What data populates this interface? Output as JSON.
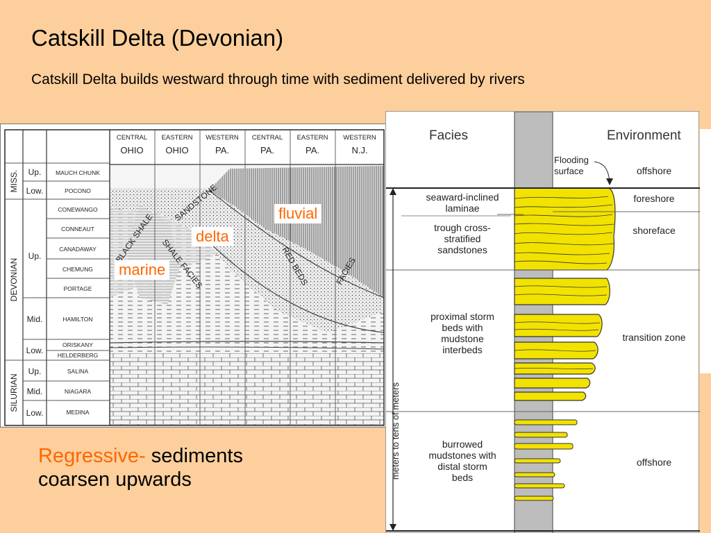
{
  "slide": {
    "title": "Catskill Delta (Devonian)",
    "subtitle": "Catskill Delta builds westward through time with sediment delivered by rivers",
    "bottom_prefix": "Regressive-",
    "bottom_line1_rest": " sediments",
    "bottom_line2": "coarsen upwards"
  },
  "colors": {
    "background": "#fccf9c",
    "accent": "#ff6600",
    "sandstone": "#f2e200"
  },
  "cross_section": {
    "columns": [
      [
        "CENTRAL",
        "OHIO"
      ],
      [
        "EASTERN",
        "OHIO"
      ],
      [
        "WESTERN",
        "PA."
      ],
      [
        "CENTRAL",
        "PA."
      ],
      [
        "EASTERN",
        "PA."
      ],
      [
        "WESTERN",
        "N.J."
      ]
    ],
    "systems": [
      "MISS.",
      "DEVONIAN",
      "SILURIAN"
    ],
    "series": [
      "Up.",
      "Low.",
      "Up.",
      "Mid.",
      "Low.",
      "Up.",
      "Mid.",
      "Low."
    ],
    "formations": [
      "MAUCH CHUNK",
      "POCONO",
      "CONEWANGO",
      "CONNEAUT",
      "CANADAWAY",
      "CHEMUNG",
      "PORTAGE",
      "HAMILTON",
      "ORISKANY",
      "HELDERBERG",
      "SALINA",
      "NIAGARA",
      "MEDINA"
    ],
    "facies_text": [
      "BLACK SHALE",
      "SHALE FACIES",
      "SANDSTONE",
      "RED BEDS",
      "FACIES"
    ],
    "labels": {
      "fluvial": "fluvial",
      "delta": "delta",
      "marine": "marine"
    }
  },
  "column": {
    "header_facies": "Facies",
    "header_environment": "Environment",
    "flooding": [
      "Flooding",
      "surface"
    ],
    "axis_label": "meters to tens of meters",
    "facies": [
      [
        "seaward-inclined",
        "laminae"
      ],
      [
        "trough cross-",
        "stratified",
        "sandstones"
      ],
      [
        "proximal storm",
        "beds with",
        "mudstone",
        "interbeds"
      ],
      [
        "burrowed",
        "mudstones with",
        "distal storm",
        "beds"
      ]
    ],
    "environments": [
      "offshore",
      "foreshore",
      "shoreface",
      "transition zone",
      "offshore"
    ]
  }
}
